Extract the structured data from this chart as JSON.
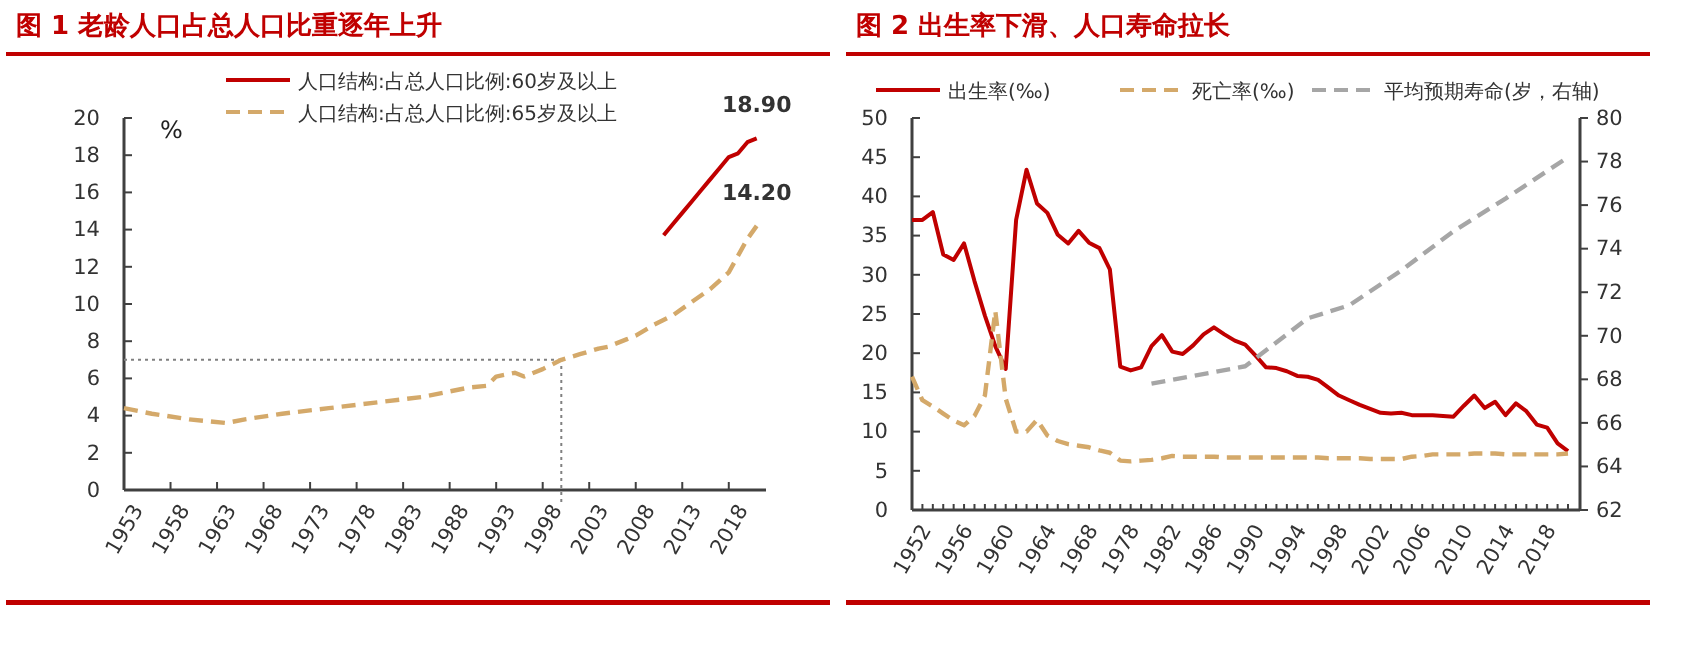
{
  "chart_data": [
    {
      "type": "line",
      "title": "图 1  老龄人口占总人口比重逐年上升",
      "ylabel": "%",
      "xlim": [
        1953,
        2022
      ],
      "xticks": [
        1953,
        1958,
        1963,
        1968,
        1973,
        1978,
        1983,
        1988,
        1993,
        1998,
        2003,
        2008,
        2013,
        2018
      ],
      "ylim": [
        0,
        20
      ],
      "yticks": [
        0,
        2,
        4,
        6,
        8,
        10,
        12,
        14,
        16,
        18,
        20
      ],
      "legend": "top",
      "grid": false,
      "series": [
        {
          "name": "人口结构:占总人口比例:60岁及以上",
          "color": "#c00000",
          "line_style": "solid",
          "x": [
            2011,
            2012,
            2013,
            2014,
            2015,
            2016,
            2017,
            2018,
            2019,
            2020,
            2021
          ],
          "values": [
            13.7,
            14.3,
            14.9,
            15.5,
            16.1,
            16.7,
            17.3,
            17.9,
            18.1,
            18.7,
            18.9
          ]
        },
        {
          "name": "人口结构:占总人口比例:65岁及以上",
          "color": "#d4a96a",
          "line_style": "dashed",
          "x": [
            1953,
            1956,
            1960,
            1964,
            1966,
            1970,
            1975,
            1980,
            1985,
            1990,
            1992,
            1993,
            1995,
            1996,
            1998,
            2000,
            2002,
            2004,
            2005,
            2007,
            2008,
            2010,
            2012,
            2014,
            2016,
            2018,
            2019,
            2020,
            2021
          ],
          "values": [
            4.4,
            4.1,
            3.8,
            3.6,
            3.8,
            4.1,
            4.4,
            4.7,
            5.0,
            5.5,
            5.6,
            6.1,
            6.3,
            6.1,
            6.5,
            7.0,
            7.3,
            7.6,
            7.7,
            8.1,
            8.3,
            8.9,
            9.4,
            10.1,
            10.8,
            11.7,
            12.6,
            13.5,
            14.2
          ]
        }
      ],
      "annotations": [
        {
          "text": "18.90",
          "x": 2021,
          "y": 18.9
        },
        {
          "text": "14.20",
          "x": 2021,
          "y": 14.2
        }
      ],
      "ref_lines": [
        {
          "axis": "y",
          "value": 7,
          "color": "#808080",
          "line_style": "dotted"
        },
        {
          "axis": "x",
          "value": 2000,
          "color": "#808080",
          "line_style": "dotted"
        }
      ]
    },
    {
      "type": "line",
      "title": "图 2    出生率下滑、人口寿命拉长",
      "ylim": [
        0,
        50
      ],
      "yticks": [
        0,
        5,
        10,
        15,
        20,
        25,
        30,
        35,
        40,
        45,
        50
      ],
      "y2lim": [
        62,
        80
      ],
      "y2ticks": [
        62,
        64,
        66,
        68,
        70,
        72,
        74,
        76,
        78,
        80
      ],
      "legend": "top",
      "grid": false,
      "categories": [
        "1952",
        null,
        null,
        null,
        "1956",
        null,
        null,
        null,
        "1960",
        null,
        null,
        null,
        "1964",
        null,
        null,
        null,
        "1968",
        null,
        null,
        null,
        "1978",
        null,
        null,
        null,
        "1982",
        null,
        null,
        null,
        "1986",
        null,
        null,
        null,
        "1990",
        null,
        null,
        null,
        "1994",
        null,
        null,
        null,
        "1998",
        null,
        null,
        null,
        "2002",
        null,
        null,
        null,
        "2006",
        null,
        null,
        null,
        "2010",
        null,
        null,
        null,
        "2014",
        null,
        null,
        null,
        "2018",
        null,
        null,
        null
      ],
      "series": [
        {
          "name": "出生率(‰)",
          "color": "#c00000",
          "line_style": "solid",
          "values": [
            37.0,
            37.0,
            38.0,
            32.6,
            31.9,
            34.0,
            29.2,
            24.8,
            20.9,
            18.0,
            37.0,
            43.4,
            39.1,
            37.9,
            35.1,
            34.0,
            35.6,
            34.1,
            33.4,
            30.7,
            18.3,
            17.8,
            18.2,
            20.9,
            22.3,
            20.2,
            19.9,
            21.0,
            22.4,
            23.3,
            22.4,
            21.6,
            21.1,
            19.7,
            18.2,
            18.1,
            17.7,
            17.1,
            17.0,
            16.6,
            15.6,
            14.6,
            14.0,
            13.4,
            12.9,
            12.4,
            12.3,
            12.4,
            12.1,
            12.1,
            12.1,
            12.0,
            11.9,
            13.3,
            14.6,
            13.0,
            13.8,
            12.1,
            13.6,
            12.6,
            10.9,
            10.5,
            8.5,
            7.5
          ]
        },
        {
          "name": "死亡率(‰)",
          "color": "#d4a96a",
          "line_style": "dashed",
          "values": [
            17.0,
            14.0,
            13.2,
            12.3,
            11.4,
            10.8,
            12.0,
            14.6,
            25.4,
            14.2,
            10.0,
            10.0,
            11.5,
            9.5,
            8.8,
            8.4,
            8.2,
            8.0,
            7.6,
            7.3,
            6.3,
            6.2,
            6.3,
            6.4,
            6.6,
            6.9,
            6.8,
            6.8,
            6.8,
            6.8,
            6.7,
            6.7,
            6.7,
            6.7,
            6.7,
            6.7,
            6.7,
            6.7,
            6.7,
            6.7,
            6.6,
            6.6,
            6.6,
            6.6,
            6.5,
            6.5,
            6.5,
            6.5,
            6.8,
            6.9,
            7.1,
            7.1,
            7.1,
            7.1,
            7.2,
            7.2,
            7.2,
            7.1,
            7.1,
            7.1,
            7.1,
            7.1,
            7.1,
            7.2
          ]
        },
        {
          "name": "平均预期寿命(岁，右轴)",
          "color": "#a6a6a6",
          "line_style": "dashed",
          "axis": "y2",
          "values": [
            null,
            null,
            null,
            null,
            null,
            null,
            null,
            null,
            null,
            null,
            null,
            null,
            null,
            null,
            null,
            null,
            null,
            null,
            null,
            null,
            null,
            null,
            null,
            67.8,
            null,
            null,
            null,
            null,
            null,
            null,
            null,
            null,
            68.6,
            null,
            null,
            null,
            null,
            null,
            70.8,
            null,
            null,
            null,
            71.4,
            null,
            null,
            null,
            null,
            73.0,
            null,
            null,
            null,
            null,
            74.8,
            null,
            null,
            null,
            null,
            76.3,
            null,
            null,
            null,
            null,
            null,
            78.2
          ]
        }
      ]
    }
  ]
}
